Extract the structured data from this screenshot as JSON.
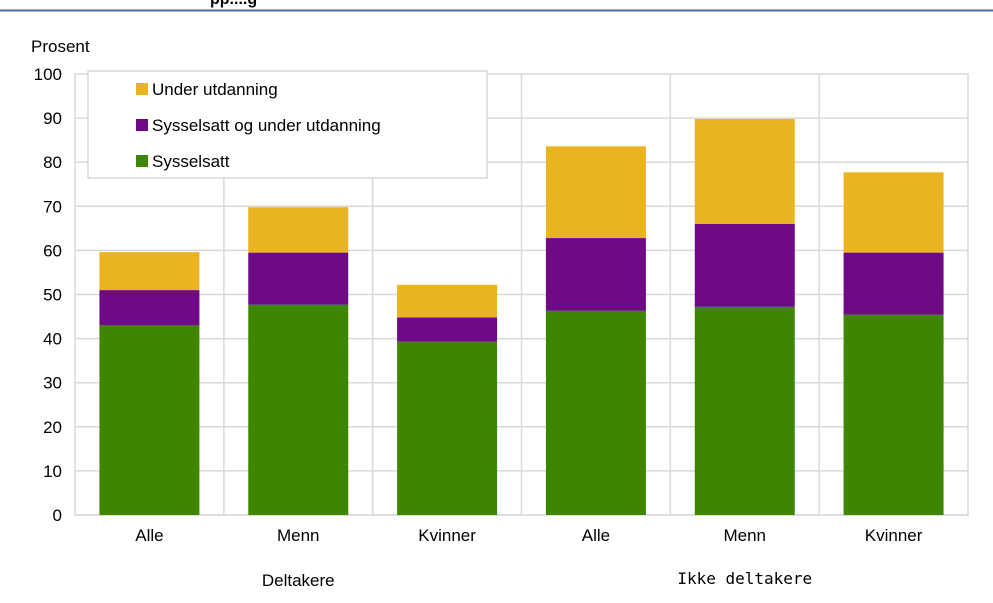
{
  "cut_title": "pp....g",
  "chart_data": {
    "type": "bar",
    "stacked": true,
    "ylabel": "Prosent",
    "ylim": [
      0,
      100
    ],
    "yticks": [
      0,
      10,
      20,
      30,
      40,
      50,
      60,
      70,
      80,
      90,
      100
    ],
    "grid": true,
    "legend_position": "top-left",
    "categories": [
      "Alle",
      "Menn",
      "Kvinner",
      "Alle",
      "Menn",
      "Kvinner"
    ],
    "groups": [
      {
        "label": "Deltakere",
        "categories": [
          0,
          1,
          2
        ]
      },
      {
        "label": "Ikke deltakere",
        "categories": [
          3,
          4,
          5
        ]
      }
    ],
    "series": [
      {
        "name": "Sysselsatt",
        "color": "#3f8600",
        "values": [
          43,
          47.7,
          39.3,
          46.3,
          47.2,
          45.4
        ]
      },
      {
        "name": "Sysselsatt og under utdanning",
        "color": "#6f0a87",
        "values": [
          8,
          11.8,
          5.5,
          16.5,
          18.8,
          14.1
        ]
      },
      {
        "name": "Under utdanning",
        "color": "#eab321",
        "values": [
          8.6,
          10.3,
          7.4,
          20.8,
          23.8,
          18.2
        ]
      }
    ],
    "legend_order": [
      2,
      1,
      0
    ]
  }
}
